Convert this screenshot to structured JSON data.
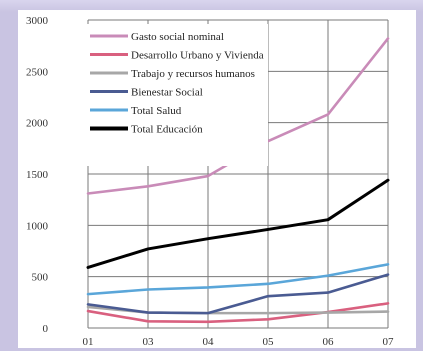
{
  "chart_data": {
    "type": "line",
    "title": "",
    "xlabel": "",
    "ylabel": "",
    "x": [
      "01",
      "03",
      "04",
      "05",
      "06",
      "07"
    ],
    "ylim": [
      0,
      3000
    ],
    "yticks": [
      0,
      500,
      1000,
      1500,
      2000,
      2500,
      3000
    ],
    "ytick_labels": [
      "0",
      "500",
      "1000",
      "1500",
      "2000",
      "2500",
      "3000"
    ],
    "grid": true,
    "legend_position": "top-left",
    "series": [
      {
        "name": "Gasto social nominal",
        "color": "#c98bb8",
        "values": [
          1310,
          1380,
          1480,
          1820,
          2080,
          2820
        ]
      },
      {
        "name": "Desarrollo Urbano y Vivienda",
        "color": "#d9607f",
        "values": [
          165,
          65,
          60,
          85,
          155,
          240
        ]
      },
      {
        "name": "Trabajo y recursos humanos",
        "color": "#a7a7a7",
        "values": [
          205,
          150,
          145,
          145,
          150,
          160
        ]
      },
      {
        "name": "Bienestar Social",
        "color": "#4a5b92",
        "values": [
          230,
          150,
          145,
          310,
          345,
          520
        ]
      },
      {
        "name": "Total Salud",
        "color": "#5aa6d9",
        "values": [
          330,
          375,
          395,
          430,
          510,
          620
        ]
      },
      {
        "name": "Total Educación",
        "color": "#000000",
        "values": [
          590,
          770,
          870,
          960,
          1055,
          1440
        ]
      }
    ]
  }
}
